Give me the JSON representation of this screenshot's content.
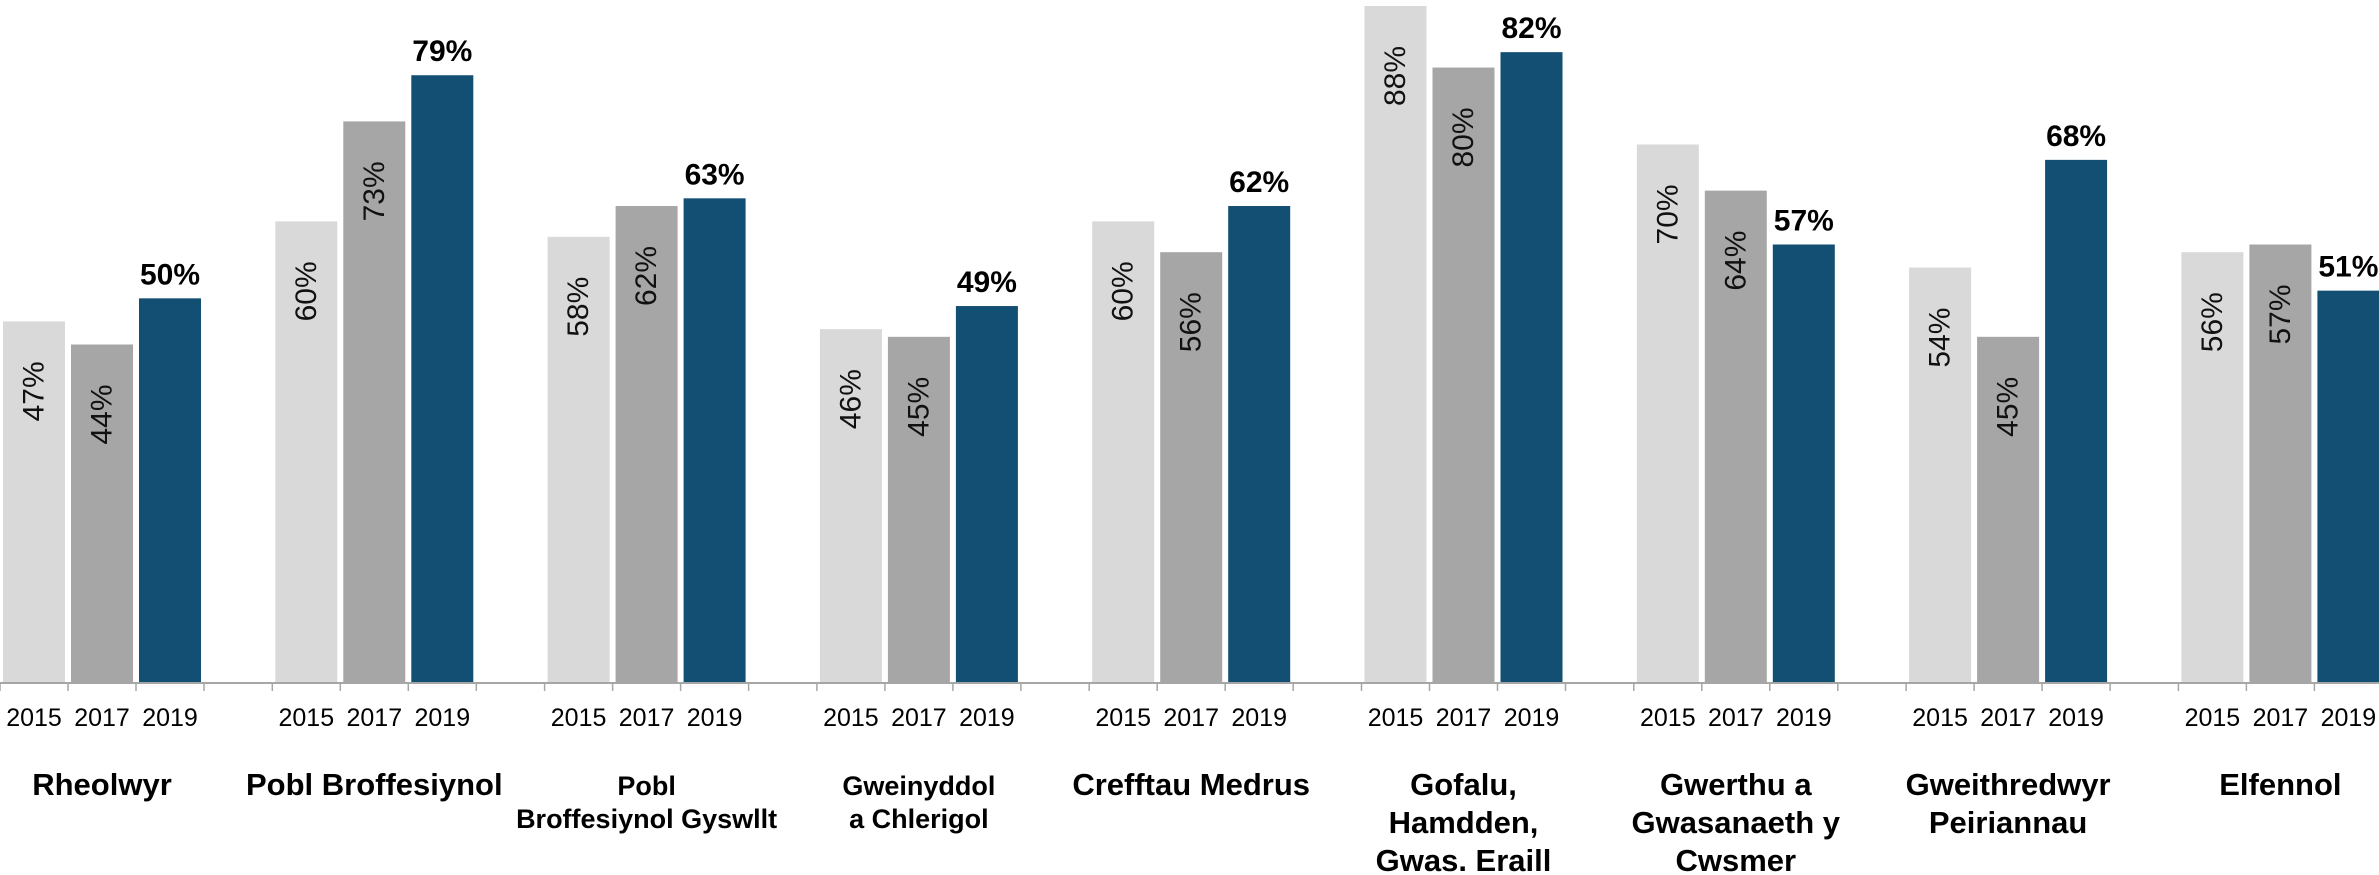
{
  "chart_data": {
    "type": "bar",
    "categories": [
      [
        "Rheolwyr"
      ],
      [
        "Pobl Broffesiynol"
      ],
      [
        "Pobl",
        "Broffesiynol Gyswllt"
      ],
      [
        "Gweinyddol",
        "a Chlerigol"
      ],
      [
        "Crefftau Medrus"
      ],
      [
        "Gofalu,",
        "Hamdden,",
        "Gwas. Eraill"
      ],
      [
        "Gwerthu a",
        "Gwasanaeth y",
        "Cwsmer"
      ],
      [
        "Gweithredwyr",
        "Peiriannau"
      ],
      [
        "Elfennol"
      ]
    ],
    "series": [
      {
        "name": "2015",
        "values": [
          47,
          60,
          58,
          46,
          60,
          88,
          70,
          54,
          56
        ],
        "labels": [
          "47%",
          "60%",
          "58%",
          "46%",
          "60%",
          "88%",
          "70%",
          "54%",
          "56%"
        ],
        "color": "#d9d9d9",
        "label_style": "inside-rotated"
      },
      {
        "name": "2017",
        "values": [
          44,
          73,
          62,
          45,
          56,
          80,
          64,
          45,
          57
        ],
        "labels": [
          "44%",
          "73%",
          "62%",
          "45%",
          "56%",
          "80%",
          "64%",
          "45%",
          "57%"
        ],
        "color": "#a6a6a6",
        "label_style": "inside-rotated"
      },
      {
        "name": "2019",
        "values": [
          50,
          79,
          63,
          49,
          62,
          82,
          57,
          68,
          51
        ],
        "labels": [
          "50%",
          "79%",
          "63%",
          "49%",
          "62%",
          "82%",
          "57%",
          "68%",
          "51%"
        ],
        "color": "#124f73",
        "label_style": "above-bold"
      }
    ],
    "ylim": [
      0,
      88
    ],
    "grid": false,
    "legend": "none"
  }
}
